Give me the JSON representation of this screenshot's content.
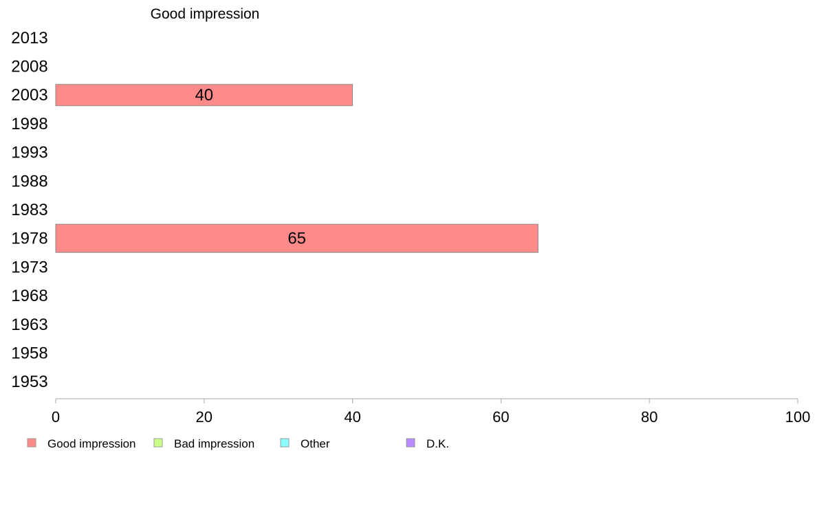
{
  "chart_data": {
    "type": "bar",
    "orientation": "horizontal",
    "series_title": "Good impression",
    "categories": [
      "2013",
      "2008",
      "2003",
      "1998",
      "1993",
      "1988",
      "1983",
      "1978",
      "1973",
      "1968",
      "1963",
      "1958",
      "1953"
    ],
    "series": [
      {
        "name": "Good impression",
        "values": [
          null,
          null,
          40,
          null,
          null,
          null,
          null,
          65,
          null,
          null,
          null,
          null,
          null
        ]
      }
    ],
    "x_ticks": [
      0,
      20,
      40,
      60,
      80,
      100
    ],
    "xlim": [
      0,
      100
    ],
    "grid": false,
    "legend": {
      "placement": "bottom-left",
      "entries": [
        {
          "label": "Good impression",
          "color": "#ff8a8a"
        },
        {
          "label": "Bad impression",
          "color": "#ccff8a"
        },
        {
          "label": "Other",
          "color": "#8affff"
        },
        {
          "label": "D.K.",
          "color": "#bb8aff"
        }
      ]
    },
    "bar_color": "#ff8a8a",
    "bar_stroke": "#888888",
    "axis_color": "#aaaaaa"
  }
}
